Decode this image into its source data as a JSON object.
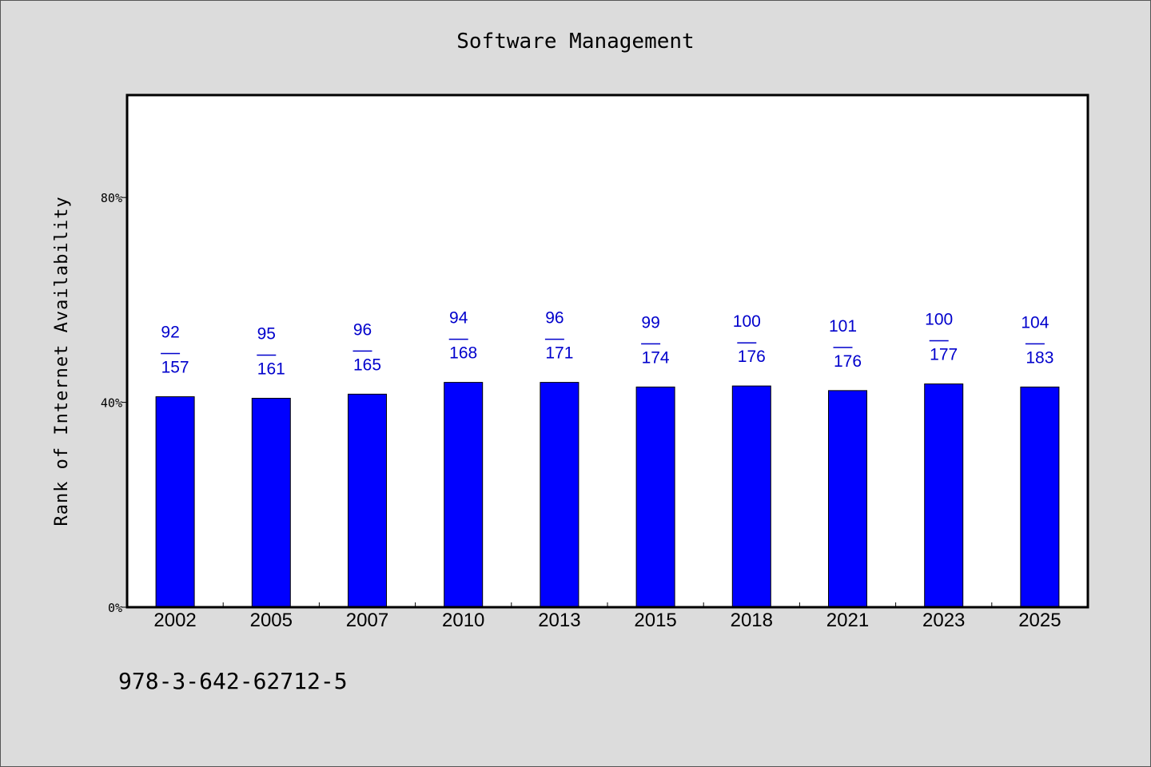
{
  "chart_data": {
    "type": "bar",
    "title": "Software Management",
    "xlabel": "",
    "ylabel": "Rank of Internet Availability",
    "categories": [
      "2002",
      "2005",
      "2007",
      "2010",
      "2013",
      "2015",
      "2018",
      "2021",
      "2023",
      "2025"
    ],
    "values": [
      41.1,
      40.8,
      41.6,
      43.9,
      43.9,
      43.0,
      43.2,
      42.3,
      43.6,
      43.0
    ],
    "bar_labels": [
      {
        "top": "92",
        "bottom": "157"
      },
      {
        "top": "95",
        "bottom": "161"
      },
      {
        "top": "96",
        "bottom": "165"
      },
      {
        "top": "94",
        "bottom": "168"
      },
      {
        "top": "96",
        "bottom": "171"
      },
      {
        "top": "99",
        "bottom": "174"
      },
      {
        "top": "100",
        "bottom": "176"
      },
      {
        "top": "101",
        "bottom": "176"
      },
      {
        "top": "100",
        "bottom": "177"
      },
      {
        "top": "104",
        "bottom": "183"
      }
    ],
    "ylim": [
      0,
      100
    ],
    "yticks": [
      0,
      40,
      80
    ],
    "ytick_labels": [
      "0%",
      "40%",
      "80%"
    ],
    "grid": false,
    "legend": "none",
    "bar_color": "#0000ff",
    "label_color": "#0000cc"
  },
  "footnote": "978-3-642-62712-5"
}
